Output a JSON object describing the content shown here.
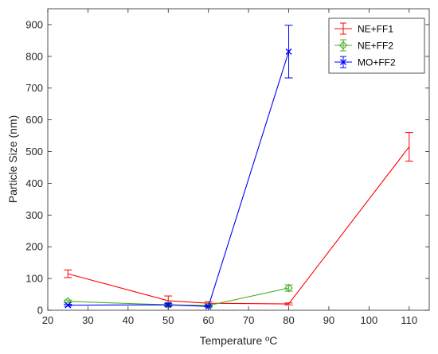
{
  "chart_data": {
    "type": "line",
    "xlabel": "Temperature ºC",
    "ylabel": "Particle Size (nm)",
    "xlim": [
      20,
      115
    ],
    "ylim": [
      0,
      950
    ],
    "xticks": [
      20,
      30,
      40,
      50,
      60,
      70,
      80,
      90,
      100,
      110
    ],
    "yticks": [
      0,
      100,
      200,
      300,
      400,
      500,
      600,
      700,
      800,
      900
    ],
    "legend_position": "top-right",
    "grid": false,
    "series": [
      {
        "name": "NE+FF1",
        "color": "#ff0000",
        "marker": "none",
        "x": [
          25,
          50,
          60,
          80,
          110
        ],
        "y": [
          115,
          30,
          22,
          20,
          515
        ],
        "err": [
          12,
          15,
          5,
          3,
          45
        ]
      },
      {
        "name": "NE+FF2",
        "color": "#4daf26",
        "marker": "diamond",
        "x": [
          25,
          50,
          60,
          80
        ],
        "y": [
          28,
          17,
          15,
          70
        ],
        "err": [
          4,
          3,
          3,
          10
        ]
      },
      {
        "name": "MO+FF2",
        "color": "#0000ff",
        "marker": "x",
        "x": [
          25,
          50,
          60,
          80
        ],
        "y": [
          16,
          17,
          12,
          815
        ],
        "err": [
          3,
          5,
          2,
          83
        ]
      }
    ]
  }
}
